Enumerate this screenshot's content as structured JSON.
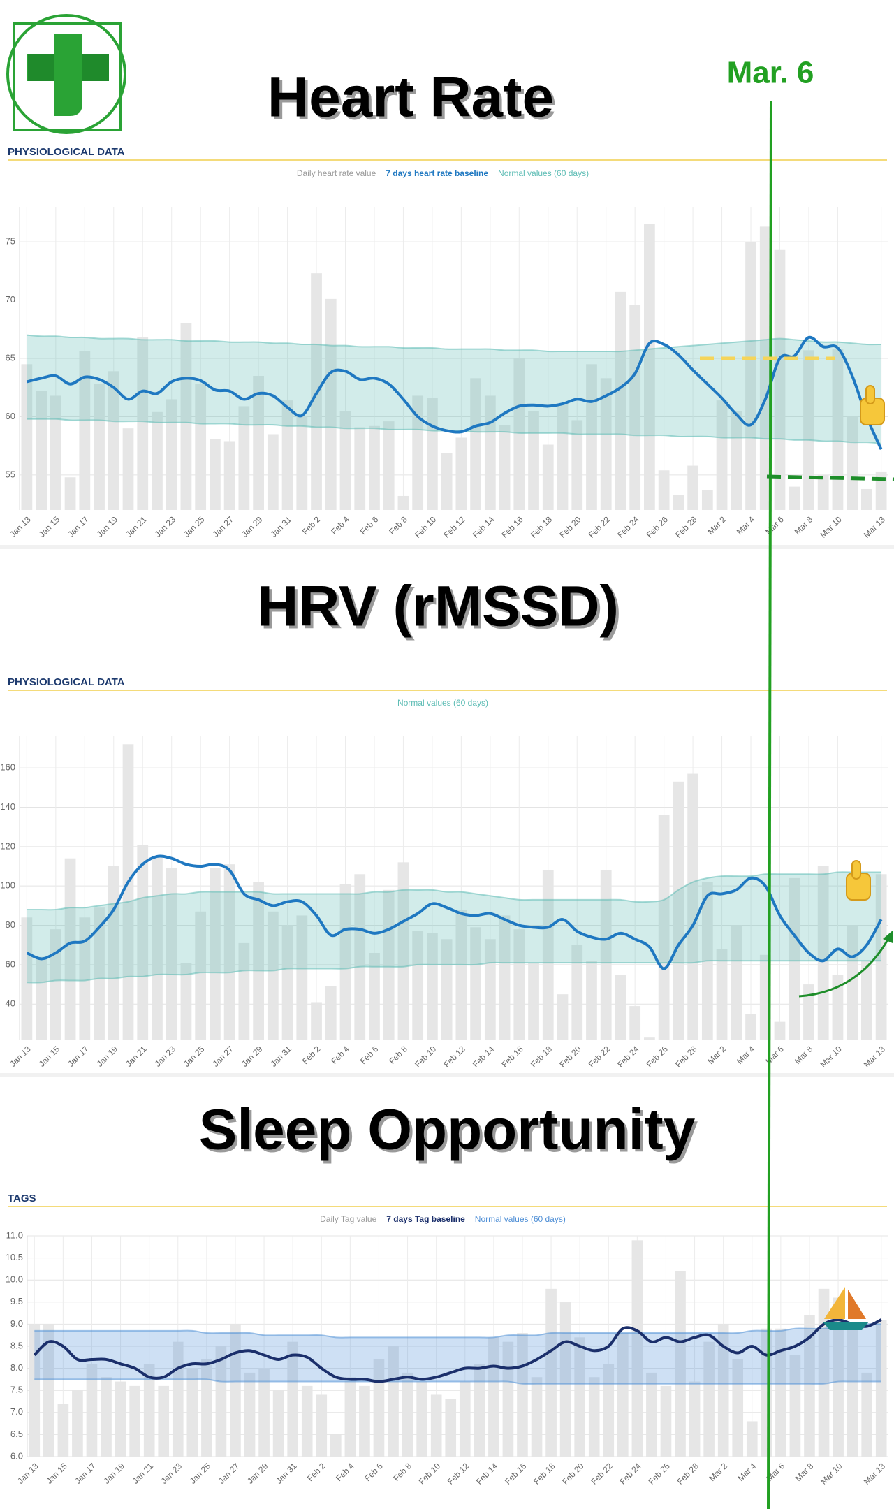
{
  "annotation": "Mar. 6",
  "chart_data": [
    {
      "type": "combo",
      "title": "Heart Rate",
      "section": "PHYSIOLOGICAL DATA",
      "categories": [
        "Jan 13",
        null,
        "Jan 15",
        null,
        "Jan 17",
        null,
        "Jan 19",
        null,
        "Jan 21",
        null,
        "Jan 23",
        null,
        "Jan 25",
        null,
        "Jan 27",
        null,
        "Jan 29",
        null,
        "Jan 31",
        null,
        "Feb 2",
        null,
        "Feb 4",
        null,
        "Feb 6",
        null,
        "Feb 8",
        null,
        "Feb 10",
        null,
        "Feb 12",
        null,
        "Feb 14",
        null,
        "Feb 16",
        null,
        "Feb 18",
        null,
        "Feb 20",
        null,
        "Feb 22",
        null,
        "Feb 24",
        null,
        "Feb 26",
        null,
        "Feb 28",
        null,
        "Mar 2",
        null,
        "Mar 4",
        null,
        "Mar 6",
        null,
        "Mar 8",
        null,
        "Mar 10",
        null,
        null,
        "Mar 13"
      ],
      "series": [
        {
          "name": "Daily heart rate value",
          "type": "bar",
          "color": "#e6e6e6",
          "values": [
            64.5,
            62.2,
            61.8,
            54.8,
            65.6,
            62.8,
            63.9,
            59,
            66.8,
            60.4,
            61.5,
            68,
            62.8,
            58.1,
            57.9,
            60.9,
            63.5,
            58.5,
            61.4,
            60,
            72.3,
            70.1,
            60.5,
            59.1,
            59.2,
            59.6,
            53.2,
            61.8,
            61.6,
            56.9,
            58.2,
            63.3,
            61.8,
            59.3,
            65,
            60.5,
            57.6,
            61.1,
            59.7,
            64.5,
            63.3,
            70.7,
            69.6,
            76.5,
            55.4,
            53.3,
            55.8,
            53.7,
            61.4,
            60.5,
            75,
            76.3,
            74.3,
            54,
            65.7,
            55,
            65.8,
            60,
            53.8,
            55.3
          ]
        },
        {
          "name": "7 days heart rate baseline",
          "type": "line",
          "color": "#1f78c1",
          "values": [
            63,
            63.3,
            63.5,
            62.8,
            63.4,
            63.2,
            62.5,
            61.5,
            62.2,
            62,
            63,
            63.3,
            63.1,
            62.3,
            62.2,
            61.5,
            62,
            61.8,
            60.8,
            60.1,
            62,
            63.8,
            63.9,
            63.2,
            63.3,
            62.8,
            61.5,
            60,
            59.2,
            58.8,
            58.7,
            59.2,
            59.5,
            60.3,
            60.9,
            61,
            60.9,
            61.1,
            61.5,
            61.3,
            61.8,
            62.5,
            63.7,
            66.3,
            66.2,
            65.3,
            64,
            62.8,
            61.6,
            60.2,
            59.3,
            61.5,
            65,
            65.2,
            66.8,
            66,
            65.9,
            63.5,
            60,
            57.2
          ]
        },
        {
          "name": "Normal values (60 days)",
          "type": "band",
          "color": "#5cbcb4",
          "upper": [
            67.0,
            66.9,
            66.9,
            66.8,
            66.8,
            66.7,
            66.7,
            66.7,
            66.6,
            66.6,
            66.6,
            66.5,
            66.5,
            66.5,
            66.4,
            66.4,
            66.4,
            66.3,
            66.3,
            66.2,
            66.2,
            66.1,
            66.1,
            66.0,
            66.0,
            66.0,
            65.9,
            65.9,
            65.9,
            65.8,
            65.8,
            65.8,
            65.8,
            65.7,
            65.7,
            65.7,
            65.6,
            65.6,
            65.6,
            65.6,
            65.6,
            65.6,
            65.7,
            65.8,
            65.9,
            66.0,
            66.1,
            66.2,
            66.3,
            66.4,
            66.5,
            66.6,
            66.7,
            66.6,
            66.5,
            66.4,
            66.4,
            66.3,
            66.2,
            66.2
          ],
          "lower": [
            59.8,
            59.8,
            59.8,
            59.7,
            59.7,
            59.7,
            59.6,
            59.6,
            59.6,
            59.5,
            59.5,
            59.5,
            59.4,
            59.4,
            59.4,
            59.3,
            59.3,
            59.3,
            59.2,
            59.2,
            59.1,
            59.1,
            59.0,
            59.0,
            59.0,
            58.9,
            58.9,
            58.9,
            58.8,
            58.8,
            58.8,
            58.7,
            58.7,
            58.7,
            58.6,
            58.6,
            58.6,
            58.6,
            58.5,
            58.5,
            58.5,
            58.5,
            58.4,
            58.4,
            58.4,
            58.3,
            58.3,
            58.3,
            58.2,
            58.2,
            58.2,
            58.1,
            58.1,
            58.0,
            58.0,
            57.9,
            57.9,
            57.8,
            57.8,
            57.7
          ]
        }
      ],
      "ylim": [
        52,
        78
      ],
      "yticks": [
        55,
        60,
        65,
        70,
        75
      ],
      "grid": true
    },
    {
      "type": "combo",
      "title": "HRV (rMSSD)",
      "section": "PHYSIOLOGICAL DATA",
      "categories": [
        "Jan 13",
        null,
        "Jan 15",
        null,
        "Jan 17",
        null,
        "Jan 19",
        null,
        "Jan 21",
        null,
        "Jan 23",
        null,
        "Jan 25",
        null,
        "Jan 27",
        null,
        "Jan 29",
        null,
        "Jan 31",
        null,
        "Feb 2",
        null,
        "Feb 4",
        null,
        "Feb 6",
        null,
        "Feb 8",
        null,
        "Feb 10",
        null,
        "Feb 12",
        null,
        "Feb 14",
        null,
        "Feb 16",
        null,
        "Feb 18",
        null,
        "Feb 20",
        null,
        "Feb 22",
        null,
        "Feb 24",
        null,
        "Feb 26",
        null,
        "Feb 28",
        null,
        "Mar 2",
        null,
        "Mar 4",
        null,
        "Mar 6",
        null,
        "Mar 8",
        null,
        "Mar 10",
        null,
        null,
        "Mar 13"
      ],
      "series": [
        {
          "type": "bar",
          "color": "#e6e6e6",
          "values": [
            84,
            64,
            78,
            114,
            84,
            89,
            110,
            172,
            121,
            115,
            109,
            61,
            87,
            109,
            111,
            71,
            102,
            87,
            80,
            85,
            41,
            49,
            101,
            106,
            66,
            98,
            112,
            77,
            76,
            73,
            88,
            79,
            73,
            85,
            78,
            61,
            108,
            45,
            70,
            62,
            108,
            55,
            39,
            23,
            136,
            153,
            157,
            102,
            68,
            80,
            35,
            65,
            31,
            104,
            50,
            110,
            55,
            80,
            62,
            106
          ]
        },
        {
          "type": "line",
          "color": "#1f78c1",
          "values": [
            66,
            63,
            66,
            71,
            72,
            79,
            88,
            102,
            111,
            115,
            114,
            111,
            110,
            111,
            108,
            96,
            93,
            90,
            92,
            92,
            85,
            75,
            78,
            78,
            76,
            78,
            82,
            86,
            91,
            89,
            86,
            85,
            86,
            83,
            80,
            79,
            79,
            83,
            77,
            74,
            73,
            76,
            73,
            69,
            58,
            70,
            80,
            95,
            96,
            98,
            104,
            100,
            85,
            75,
            66,
            62,
            68,
            64,
            70,
            83
          ]
        },
        {
          "name": "Normal values (60 days)",
          "type": "band",
          "color": "#5cbcb4",
          "upper": [
            88,
            88,
            88,
            89,
            89,
            90,
            91,
            92,
            94,
            95,
            96,
            96,
            97,
            97,
            97,
            97,
            97,
            96,
            96,
            96,
            96,
            96,
            96,
            96,
            97,
            97,
            98,
            98,
            98,
            97,
            97,
            96,
            95,
            94,
            93,
            93,
            93,
            93,
            93,
            93,
            93,
            93,
            92,
            92,
            93,
            98,
            102,
            104,
            105,
            105,
            105,
            106,
            106,
            106,
            106,
            106,
            107,
            107,
            107,
            107
          ],
          "lower": [
            51,
            51,
            52,
            52,
            52,
            53,
            53,
            54,
            54,
            55,
            55,
            55,
            56,
            56,
            56,
            57,
            57,
            57,
            58,
            58,
            58,
            58,
            58,
            59,
            59,
            59,
            59,
            60,
            60,
            60,
            60,
            60,
            61,
            61,
            61,
            61,
            61,
            61,
            61,
            61,
            61,
            61,
            61,
            61,
            61,
            61,
            61,
            62,
            62,
            62,
            62,
            62,
            62,
            62,
            62,
            62,
            62,
            62,
            62,
            62
          ]
        }
      ],
      "ylim": [
        22,
        176
      ],
      "yticks": [
        40,
        60,
        80,
        100,
        120,
        140,
        160
      ],
      "grid": true
    },
    {
      "type": "combo",
      "title": "Sleep Opportunity",
      "section": "TAGS",
      "categories": [
        "Jan 13",
        null,
        "Jan 15",
        null,
        "Jan 17",
        null,
        "Jan 19",
        null,
        "Jan 21",
        null,
        "Jan 23",
        null,
        "Jan 25",
        null,
        "Jan 27",
        null,
        "Jan 29",
        null,
        "Jan 31",
        null,
        "Feb 2",
        null,
        "Feb 4",
        null,
        "Feb 6",
        null,
        "Feb 8",
        null,
        "Feb 10",
        null,
        "Feb 12",
        null,
        "Feb 14",
        null,
        "Feb 16",
        null,
        "Feb 18",
        null,
        "Feb 20",
        null,
        "Feb 22",
        null,
        "Feb 24",
        null,
        "Feb 26",
        null,
        "Feb 28",
        null,
        "Mar 2",
        null,
        "Mar 4",
        null,
        "Mar 6",
        null,
        "Mar 8",
        null,
        "Mar 10",
        null,
        null,
        "Mar 13"
      ],
      "series": [
        {
          "name": "Daily Tag value",
          "type": "bar",
          "color": "#e6e6e6",
          "values": [
            9.0,
            9.0,
            7.2,
            7.5,
            8.1,
            7.8,
            7.7,
            7.6,
            8.1,
            7.6,
            8.6,
            8.0,
            8.2,
            8.5,
            9.0,
            7.9,
            8.0,
            7.5,
            8.6,
            7.6,
            7.4,
            6.5,
            7.8,
            7.6,
            8.2,
            8.5,
            7.9,
            7.7,
            7.4,
            7.3,
            7.7,
            8.1,
            8.7,
            8.6,
            8.8,
            7.8,
            9.8,
            9.5,
            8.7,
            7.8,
            8.1,
            8.8,
            10.9,
            7.9,
            7.6,
            10.2,
            7.7,
            8.6,
            9.0,
            8.2,
            6.8,
            8.9,
            8.9,
            8.3,
            9.2,
            9.8,
            9.6,
            9.0,
            7.9,
            9.1
          ]
        },
        {
          "name": "7 days Tag baseline",
          "type": "line",
          "color": "#1b2f6b",
          "values": [
            8.3,
            8.6,
            8.5,
            8.2,
            8.2,
            8.2,
            8.1,
            8.0,
            7.8,
            7.8,
            8.0,
            8.1,
            8.1,
            8.2,
            8.35,
            8.4,
            8.3,
            8.2,
            8.3,
            8.25,
            8.0,
            7.8,
            7.75,
            7.75,
            7.7,
            7.75,
            7.8,
            7.75,
            7.8,
            7.9,
            8.0,
            8.0,
            8.05,
            8.0,
            8.05,
            8.2,
            8.4,
            8.6,
            8.5,
            8.4,
            8.5,
            8.9,
            8.85,
            8.6,
            8.7,
            8.6,
            8.7,
            8.75,
            8.5,
            8.35,
            8.5,
            8.3,
            8.4,
            8.5,
            8.7,
            9.0,
            9.1,
            9.0,
            8.95,
            9.1
          ]
        },
        {
          "name": "Normal values (60 days)",
          "type": "band",
          "color": "#4f8fd6",
          "upper": [
            8.85,
            8.85,
            8.85,
            8.85,
            8.85,
            8.85,
            8.85,
            8.85,
            8.85,
            8.85,
            8.85,
            8.85,
            8.8,
            8.8,
            8.8,
            8.8,
            8.75,
            8.75,
            8.75,
            8.75,
            8.75,
            8.7,
            8.7,
            8.7,
            8.7,
            8.7,
            8.7,
            8.7,
            8.7,
            8.7,
            8.7,
            8.7,
            8.7,
            8.75,
            8.75,
            8.75,
            8.8,
            8.8,
            8.8,
            8.8,
            8.8,
            8.8,
            8.8,
            8.8,
            8.8,
            8.8,
            8.8,
            8.8,
            8.8,
            8.8,
            8.85,
            8.85,
            8.85,
            8.9,
            8.9,
            8.9,
            8.95,
            8.95,
            9.0,
            9.0
          ],
          "lower": [
            7.75,
            7.75,
            7.75,
            7.75,
            7.75,
            7.75,
            7.75,
            7.75,
            7.75,
            7.75,
            7.75,
            7.75,
            7.75,
            7.7,
            7.7,
            7.7,
            7.7,
            7.7,
            7.7,
            7.7,
            7.7,
            7.7,
            7.7,
            7.7,
            7.7,
            7.7,
            7.7,
            7.7,
            7.7,
            7.7,
            7.7,
            7.7,
            7.7,
            7.7,
            7.65,
            7.65,
            7.65,
            7.65,
            7.65,
            7.65,
            7.65,
            7.65,
            7.65,
            7.65,
            7.65,
            7.65,
            7.65,
            7.65,
            7.65,
            7.65,
            7.65,
            7.65,
            7.65,
            7.65,
            7.65,
            7.65,
            7.7,
            7.7,
            7.7,
            7.7
          ]
        }
      ],
      "ylim": [
        6,
        11
      ],
      "yticks": [
        {
          "value": 6,
          "label": "6.0"
        },
        6.5,
        {
          "value": 7,
          "label": "7.0"
        },
        7.5,
        {
          "value": 8,
          "label": "8.0"
        },
        8.5,
        {
          "value": 9,
          "label": "9.0"
        },
        9.5,
        {
          "value": 10,
          "label": "10.0"
        },
        10.5,
        {
          "value": 11,
          "label": "11.0"
        }
      ],
      "grid": true
    }
  ]
}
